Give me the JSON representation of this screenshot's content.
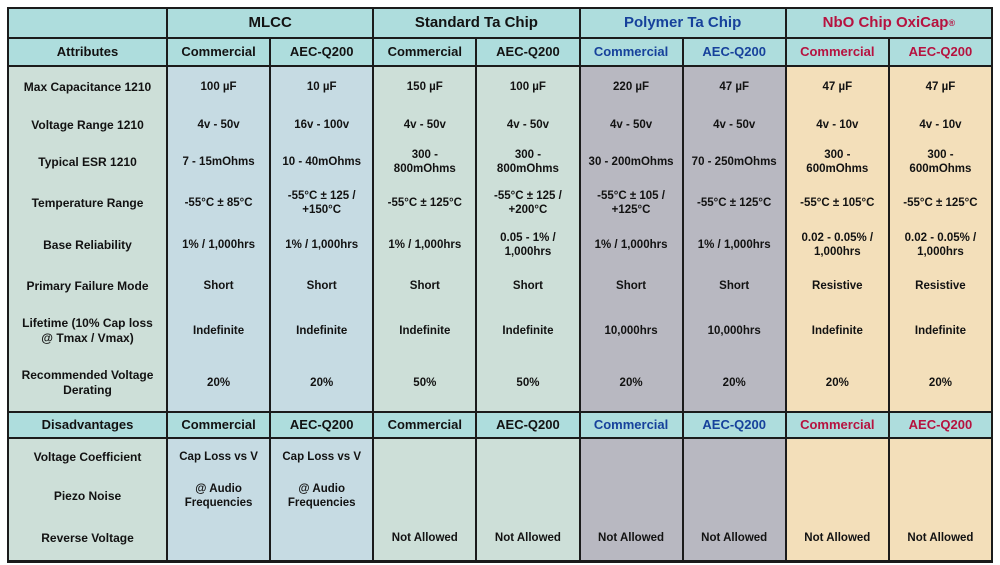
{
  "colors": {
    "header_bg": "#aedddd",
    "border": "#1b1b1b",
    "text_default": "#121212",
    "polymer_text": "#16419b",
    "nbo_text": "#b6123f",
    "attr_col_bg": "#cddfd8",
    "mlcc_bg": "#c6dbe3",
    "standard_ta_bg": "#cddfd8",
    "polymer_bg": "#b8b8c1",
    "nbo_bg": "#f3dfba"
  },
  "table": {
    "corner_label": "",
    "attributes_header": "Attributes",
    "disadvantages_header": "Disadvantages",
    "groups": [
      {
        "label": "MLCC",
        "sup": "",
        "fg": "#121212",
        "bg": "#c6dbe3"
      },
      {
        "label": "Standard Ta Chip",
        "sup": "",
        "fg": "#121212",
        "bg": "#cddfd8"
      },
      {
        "label": "Polymer Ta Chip",
        "sup": "",
        "fg": "#16419b",
        "bg": "#b8b8c1"
      },
      {
        "label": "NbO Chip OxiCap",
        "sup": "®",
        "fg": "#b6123f",
        "bg": "#f3dfba"
      }
    ],
    "columns": [
      {
        "key": "mlcc-commercial",
        "subheader": "Commercial",
        "group": 0
      },
      {
        "key": "mlcc-aec-q200",
        "subheader": "AEC-Q200",
        "group": 0
      },
      {
        "key": "standard-ta-commercial",
        "subheader": "Commercial",
        "group": 1
      },
      {
        "key": "standard-ta-aec-q200",
        "subheader": "AEC-Q200",
        "group": 1
      },
      {
        "key": "polymer-commercial",
        "subheader": "Commercial",
        "group": 2
      },
      {
        "key": "polymer-aec-q200",
        "subheader": "AEC-Q200",
        "group": 2
      },
      {
        "key": "nbo-commercial",
        "subheader": "Commercial",
        "group": 3
      },
      {
        "key": "nbo-aec-q200",
        "subheader": "AEC-Q200",
        "group": 3
      }
    ],
    "attribute_rows": [
      {
        "label": "Max Capacitance 1210",
        "values": [
          "100 µF",
          "10 µF",
          "150 µF",
          "100 µF",
          "220 µF",
          "47 µF",
          "47 µF",
          "47 µF"
        ]
      },
      {
        "label": "Voltage Range 1210",
        "values": [
          "4v - 50v",
          "16v - 100v",
          "4v - 50v",
          "4v - 50v",
          "4v - 50v",
          "4v - 50v",
          "4v - 10v",
          "4v - 10v"
        ]
      },
      {
        "label": "Typical ESR 1210",
        "values": [
          "7 - 15mOhms",
          "10 - 40mOhms",
          "300 - 800mOhms",
          "300 - 800mOhms",
          "30 - 200mOhms",
          "70 - 250mOhms",
          "300 - 600mOhms",
          "300 - 600mOhms"
        ]
      },
      {
        "label": "Temperature Range",
        "values": [
          "-55°C ± 85°C",
          "-55°C ± 125 / +150°C",
          "-55°C ± 125°C",
          "-55°C ± 125 / +200°C",
          "-55°C ± 105 / +125°C",
          "-55°C ± 125°C",
          "-55°C ± 105°C",
          "-55°C ± 125°C"
        ]
      },
      {
        "label": "Base Reliability",
        "values": [
          "1% / 1,000hrs",
          "1% / 1,000hrs",
          "1% / 1,000hrs",
          "0.05 - 1% / 1,000hrs",
          "1% / 1,000hrs",
          "1% / 1,000hrs",
          "0.02 - 0.05% / 1,000hrs",
          "0.02 - 0.05% / 1,000hrs"
        ]
      },
      {
        "label": "Primary Failure Mode",
        "values": [
          "Short",
          "Short",
          "Short",
          "Short",
          "Short",
          "Short",
          "Resistive",
          "Resistive"
        ]
      },
      {
        "label": "Lifetime (10% Cap loss @ Tmax / Vmax)",
        "values": [
          "Indefinite",
          "Indefinite",
          "Indefinite",
          "Indefinite",
          "10,000hrs",
          "10,000hrs",
          "Indefinite",
          "Indefinite"
        ]
      },
      {
        "label": "Recommended Voltage Derating",
        "values": [
          "20%",
          "20%",
          "50%",
          "50%",
          "20%",
          "20%",
          "20%",
          "20%"
        ]
      }
    ],
    "disadvantage_rows": [
      {
        "label": "Voltage Coefficient",
        "values": [
          "Cap Loss vs V",
          "Cap Loss vs V",
          "",
          "",
          "",
          "",
          "",
          ""
        ]
      },
      {
        "label": "Piezo Noise",
        "values": [
          "@ Audio Frequencies",
          "@ Audio Frequencies",
          "",
          "",
          "",
          "",
          "",
          ""
        ]
      },
      {
        "label": "Reverse Voltage",
        "values": [
          "",
          "",
          "Not Allowed",
          "Not Allowed",
          "Not Allowed",
          "Not Allowed",
          "Not Allowed",
          "Not Allowed"
        ]
      }
    ]
  },
  "chart_data": {
    "type": "table",
    "title": "",
    "column_groups": [
      "MLCC",
      "Standard Ta Chip",
      "Polymer Ta Chip",
      "NbO Chip OxiCap®"
    ],
    "column_headers": [
      "Attributes",
      "MLCC Commercial",
      "MLCC AEC-Q200",
      "Standard Ta Chip Commercial",
      "Standard Ta Chip AEC-Q200",
      "Polymer Ta Chip Commercial",
      "Polymer Ta Chip AEC-Q200",
      "NbO Chip OxiCap Commercial",
      "NbO Chip OxiCap AEC-Q200"
    ],
    "rows": [
      [
        "Max Capacitance 1210",
        "100 µF",
        "10 µF",
        "150 µF",
        "100 µF",
        "220 µF",
        "47 µF",
        "47 µF",
        "47 µF"
      ],
      [
        "Voltage Range 1210",
        "4v - 50v",
        "16v - 100v",
        "4v - 50v",
        "4v - 50v",
        "4v - 50v",
        "4v - 50v",
        "4v - 10v",
        "4v - 10v"
      ],
      [
        "Typical ESR 1210",
        "7 - 15mOhms",
        "10 - 40mOhms",
        "300 - 800mOhms",
        "300 - 800mOhms",
        "30 - 200mOhms",
        "70 - 250mOhms",
        "300 - 600mOhms",
        "300 - 600mOhms"
      ],
      [
        "Temperature Range",
        "-55°C ± 85°C",
        "-55°C ± 125 / +150°C",
        "-55°C ± 125°C",
        "-55°C ± 125 / +200°C",
        "-55°C ± 105 / +125°C",
        "-55°C ± 125°C",
        "-55°C ± 105°C",
        "-55°C ± 125°C"
      ],
      [
        "Base Reliability",
        "1% / 1,000hrs",
        "1% / 1,000hrs",
        "1% / 1,000hrs",
        "0.05 - 1% / 1,000hrs",
        "1% / 1,000hrs",
        "1% / 1,000hrs",
        "0.02 - 0.05% / 1,000hrs",
        "0.02 - 0.05% / 1,000hrs"
      ],
      [
        "Primary Failure Mode",
        "Short",
        "Short",
        "Short",
        "Short",
        "Short",
        "Short",
        "Resistive",
        "Resistive"
      ],
      [
        "Lifetime (10% Cap loss @ Tmax / Vmax)",
        "Indefinite",
        "Indefinite",
        "Indefinite",
        "Indefinite",
        "10,000hrs",
        "10,000hrs",
        "Indefinite",
        "Indefinite"
      ],
      [
        "Recommended Voltage Derating",
        "20%",
        "20%",
        "50%",
        "50%",
        "20%",
        "20%",
        "20%",
        "20%"
      ],
      [
        "Disadvantages: Voltage Coefficient",
        "Cap Loss vs V",
        "Cap Loss vs V",
        "",
        "",
        "",
        "",
        "",
        ""
      ],
      [
        "Disadvantages: Piezo Noise",
        "@ Audio Frequencies",
        "@ Audio Frequencies",
        "",
        "",
        "",
        "",
        "",
        ""
      ],
      [
        "Disadvantages: Reverse Voltage",
        "",
        "",
        "Not Allowed",
        "Not Allowed",
        "Not Allowed",
        "Not Allowed",
        "Not Allowed",
        "Not Allowed"
      ]
    ]
  }
}
